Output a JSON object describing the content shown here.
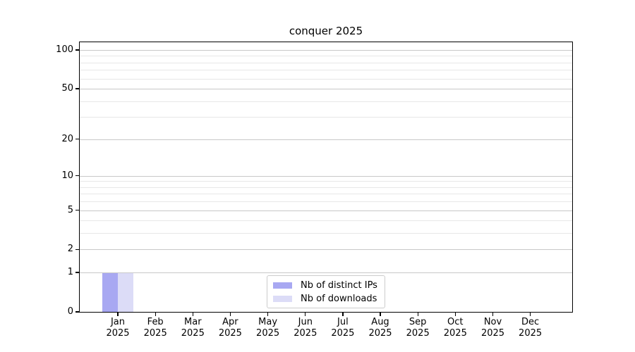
{
  "chart_data": {
    "type": "bar",
    "title": "conquer 2025",
    "year": "2025",
    "categories": [
      "Jan",
      "Feb",
      "Mar",
      "Apr",
      "May",
      "Jun",
      "Jul",
      "Aug",
      "Sep",
      "Oct",
      "Nov",
      "Dec"
    ],
    "series": [
      {
        "name": "Nb of distinct IPs",
        "color": "#a8a8f2",
        "values": [
          1,
          0,
          0,
          0,
          0,
          0,
          0,
          0,
          0,
          0,
          0,
          0
        ]
      },
      {
        "name": "Nb of downloads",
        "color": "#dcdcf7",
        "values": [
          1,
          0,
          0,
          0,
          0,
          0,
          0,
          0,
          0,
          0,
          0,
          0
        ]
      }
    ],
    "xlabel": "",
    "ylabel": "",
    "y_axis": {
      "scale": "log1p",
      "ylim": [
        0,
        100
      ],
      "major_ticks": [
        0,
        1,
        2,
        5,
        10,
        20,
        50,
        100
      ],
      "minor_gridlines": [
        3,
        4,
        6,
        7,
        8,
        9,
        30,
        40,
        60,
        70,
        80,
        90
      ]
    },
    "legend": {
      "position": "lower-center-inside",
      "entries": [
        "Nb of distinct IPs",
        "Nb of downloads"
      ]
    },
    "colors": {
      "grid_major": "#c8c8c8",
      "grid_minor": "#e7e7e7",
      "spine": "#000000",
      "background": "#ffffff"
    }
  }
}
